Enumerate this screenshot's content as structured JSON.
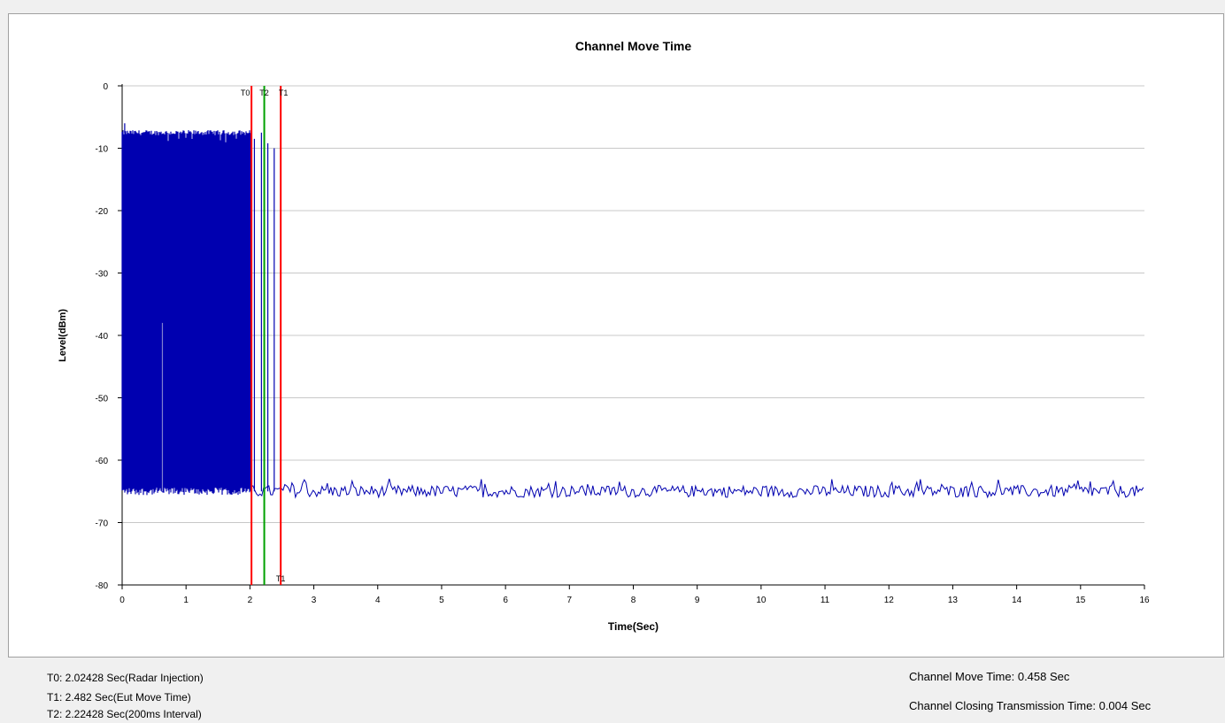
{
  "chart_data": {
    "type": "line",
    "title": "Channel Move Time",
    "xlabel": "Time(Sec)",
    "ylabel": "Level(dBm)",
    "xlim": [
      0,
      16
    ],
    "ylim": [
      -80,
      0
    ],
    "x_ticks": [
      "0",
      "1",
      "2",
      "3",
      "4",
      "5",
      "6",
      "7",
      "8",
      "9",
      "10",
      "11",
      "12",
      "13",
      "14",
      "15",
      "16"
    ],
    "y_ticks": [
      "0",
      "-10",
      "-20",
      "-30",
      "-40",
      "-50",
      "-60",
      "-70",
      "-80"
    ],
    "grid": "horizontal",
    "series_color": "#0000b0",
    "signal": {
      "transmission_start": 0.0,
      "transmission_end": 2.02,
      "transmission_top": -7.5,
      "transmission_peak": -6.0,
      "noise_floor": -65.0,
      "noise_jitter": 1.2,
      "spike_low_at": 0.63,
      "spike_low_top": -38.0,
      "spikes": [
        {
          "x": 2.07,
          "y": -8.5
        },
        {
          "x": 2.18,
          "y": -7.5
        },
        {
          "x": 2.28,
          "y": -9.2
        },
        {
          "x": 2.38,
          "y": -10.0
        }
      ]
    },
    "markers": [
      {
        "name": "T0",
        "x": 2.02428,
        "color": "#ff0000"
      },
      {
        "name": "T2",
        "x": 2.22428,
        "color": "#00a000"
      },
      {
        "name": "T1",
        "x": 2.482,
        "color": "#ff0000"
      }
    ],
    "bottom_marker_label": "T1"
  },
  "footer": {
    "t0": "T0: 2.02428 Sec(Radar Injection)",
    "t1": "T1: 2.482 Sec(Eut Move Time)",
    "t2": "T2: 2.22428 Sec(200ms Interval)",
    "move_time": "Channel Move Time: 0.458 Sec",
    "closing_time": "Channel Closing Transmission Time: 0.004 Sec"
  }
}
